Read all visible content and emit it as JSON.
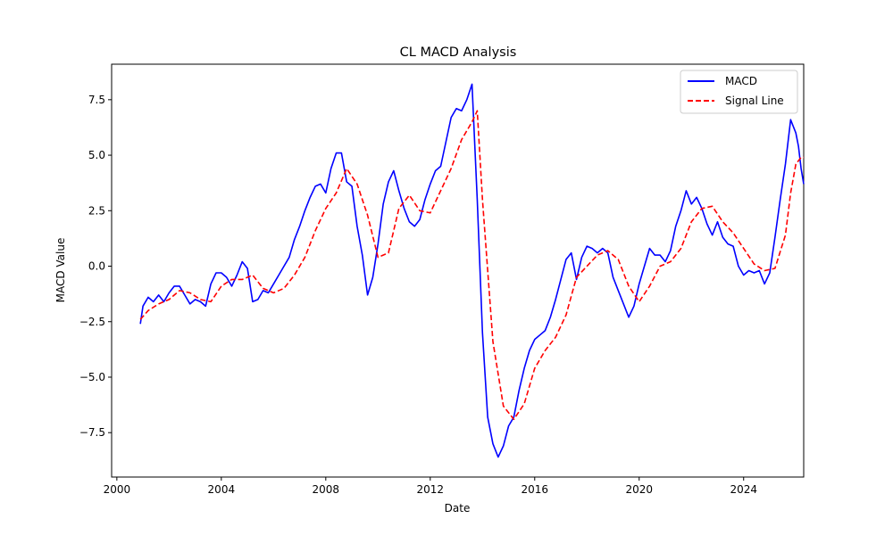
{
  "chart_data": {
    "type": "line",
    "title": "CL MACD Analysis",
    "xlabel": "Date",
    "ylabel": "MACD Value",
    "xlim": [
      1999.8,
      2026.3
    ],
    "ylim": [
      -9.5,
      9.1
    ],
    "x_ticks": [
      {
        "value": 2000,
        "label": "2000"
      },
      {
        "value": 2004,
        "label": "2004"
      },
      {
        "value": 2008,
        "label": "2008"
      },
      {
        "value": 2012,
        "label": "2012"
      },
      {
        "value": 2016,
        "label": "2016"
      },
      {
        "value": 2020,
        "label": "2020"
      },
      {
        "value": 2024,
        "label": "2024"
      }
    ],
    "y_ticks": [
      {
        "value": -7.5,
        "label": "−7.5"
      },
      {
        "value": -5.0,
        "label": "−5.0"
      },
      {
        "value": -2.5,
        "label": "−2.5"
      },
      {
        "value": 0.0,
        "label": "0.0"
      },
      {
        "value": 2.5,
        "label": "2.5"
      },
      {
        "value": 5.0,
        "label": "5.0"
      },
      {
        "value": 7.5,
        "label": "7.5"
      }
    ],
    "grid": false,
    "legend_position": "top-right",
    "series": [
      {
        "name": "MACD",
        "color": "#0000ff",
        "style": "solid",
        "points": [
          [
            2000.9,
            -2.6
          ],
          [
            2001.0,
            -1.8
          ],
          [
            2001.2,
            -1.4
          ],
          [
            2001.4,
            -1.6
          ],
          [
            2001.6,
            -1.3
          ],
          [
            2001.8,
            -1.6
          ],
          [
            2002.0,
            -1.2
          ],
          [
            2002.2,
            -0.9
          ],
          [
            2002.4,
            -0.9
          ],
          [
            2002.6,
            -1.3
          ],
          [
            2002.8,
            -1.7
          ],
          [
            2003.0,
            -1.5
          ],
          [
            2003.2,
            -1.6
          ],
          [
            2003.4,
            -1.8
          ],
          [
            2003.6,
            -0.8
          ],
          [
            2003.8,
            -0.3
          ],
          [
            2004.0,
            -0.3
          ],
          [
            2004.2,
            -0.5
          ],
          [
            2004.4,
            -0.9
          ],
          [
            2004.6,
            -0.4
          ],
          [
            2004.8,
            0.2
          ],
          [
            2005.0,
            -0.1
          ],
          [
            2005.2,
            -1.6
          ],
          [
            2005.4,
            -1.5
          ],
          [
            2005.6,
            -1.1
          ],
          [
            2005.8,
            -1.2
          ],
          [
            2006.0,
            -0.8
          ],
          [
            2006.2,
            -0.4
          ],
          [
            2006.4,
            0.0
          ],
          [
            2006.6,
            0.4
          ],
          [
            2006.8,
            1.2
          ],
          [
            2007.0,
            1.8
          ],
          [
            2007.2,
            2.5
          ],
          [
            2007.4,
            3.1
          ],
          [
            2007.6,
            3.6
          ],
          [
            2007.8,
            3.7
          ],
          [
            2008.0,
            3.3
          ],
          [
            2008.2,
            4.4
          ],
          [
            2008.4,
            5.1
          ],
          [
            2008.6,
            5.1
          ],
          [
            2008.8,
            3.8
          ],
          [
            2009.0,
            3.6
          ],
          [
            2009.2,
            1.8
          ],
          [
            2009.4,
            0.5
          ],
          [
            2009.6,
            -1.3
          ],
          [
            2009.8,
            -0.5
          ],
          [
            2010.0,
            1.0
          ],
          [
            2010.2,
            2.8
          ],
          [
            2010.4,
            3.8
          ],
          [
            2010.6,
            4.3
          ],
          [
            2010.8,
            3.4
          ],
          [
            2011.0,
            2.6
          ],
          [
            2011.2,
            2.0
          ],
          [
            2011.4,
            1.8
          ],
          [
            2011.6,
            2.1
          ],
          [
            2011.8,
            3.0
          ],
          [
            2012.0,
            3.7
          ],
          [
            2012.2,
            4.3
          ],
          [
            2012.4,
            4.5
          ],
          [
            2012.6,
            5.6
          ],
          [
            2012.8,
            6.7
          ],
          [
            2013.0,
            7.1
          ],
          [
            2013.2,
            7.0
          ],
          [
            2013.4,
            7.5
          ],
          [
            2013.6,
            8.2
          ],
          [
            2013.8,
            3.0
          ],
          [
            2014.0,
            -3.0
          ],
          [
            2014.2,
            -6.8
          ],
          [
            2014.4,
            -8.0
          ],
          [
            2014.6,
            -8.6
          ],
          [
            2014.8,
            -8.1
          ],
          [
            2015.0,
            -7.2
          ],
          [
            2015.2,
            -6.8
          ],
          [
            2015.4,
            -5.6
          ],
          [
            2015.6,
            -4.6
          ],
          [
            2015.8,
            -3.8
          ],
          [
            2016.0,
            -3.3
          ],
          [
            2016.2,
            -3.1
          ],
          [
            2016.4,
            -2.9
          ],
          [
            2016.6,
            -2.3
          ],
          [
            2016.8,
            -1.5
          ],
          [
            2017.0,
            -0.6
          ],
          [
            2017.2,
            0.3
          ],
          [
            2017.4,
            0.6
          ],
          [
            2017.6,
            -0.6
          ],
          [
            2017.8,
            0.4
          ],
          [
            2018.0,
            0.9
          ],
          [
            2018.2,
            0.8
          ],
          [
            2018.4,
            0.6
          ],
          [
            2018.6,
            0.8
          ],
          [
            2018.8,
            0.6
          ],
          [
            2019.0,
            -0.5
          ],
          [
            2019.2,
            -1.1
          ],
          [
            2019.4,
            -1.7
          ],
          [
            2019.6,
            -2.3
          ],
          [
            2019.8,
            -1.8
          ],
          [
            2020.0,
            -0.8
          ],
          [
            2020.2,
            0.0
          ],
          [
            2020.4,
            0.8
          ],
          [
            2020.6,
            0.5
          ],
          [
            2020.8,
            0.5
          ],
          [
            2021.0,
            0.2
          ],
          [
            2021.2,
            0.7
          ],
          [
            2021.4,
            1.8
          ],
          [
            2021.6,
            2.5
          ],
          [
            2021.8,
            3.4
          ],
          [
            2022.0,
            2.8
          ],
          [
            2022.2,
            3.1
          ],
          [
            2022.4,
            2.6
          ],
          [
            2022.6,
            1.9
          ],
          [
            2022.8,
            1.4
          ],
          [
            2023.0,
            2.0
          ],
          [
            2023.2,
            1.3
          ],
          [
            2023.4,
            1.0
          ],
          [
            2023.6,
            0.9
          ],
          [
            2023.8,
            0.0
          ],
          [
            2024.0,
            -0.4
          ],
          [
            2024.2,
            -0.2
          ],
          [
            2024.4,
            -0.3
          ],
          [
            2024.6,
            -0.2
          ],
          [
            2024.8,
            -0.8
          ],
          [
            2025.0,
            -0.3
          ],
          [
            2025.2,
            1.3
          ],
          [
            2025.4,
            3.0
          ],
          [
            2025.6,
            4.6
          ],
          [
            2025.8,
            6.6
          ],
          [
            2026.0,
            6.0
          ],
          [
            2026.1,
            5.4
          ],
          [
            2026.2,
            4.4
          ],
          [
            2026.3,
            3.7
          ]
        ]
      },
      {
        "name": "Signal Line",
        "color": "#ff0000",
        "style": "dashed",
        "points": [
          [
            2000.9,
            -2.4
          ],
          [
            2001.2,
            -2.0
          ],
          [
            2001.6,
            -1.7
          ],
          [
            2002.0,
            -1.5
          ],
          [
            2002.4,
            -1.1
          ],
          [
            2002.8,
            -1.2
          ],
          [
            2003.2,
            -1.5
          ],
          [
            2003.6,
            -1.6
          ],
          [
            2004.0,
            -0.9
          ],
          [
            2004.4,
            -0.6
          ],
          [
            2004.8,
            -0.6
          ],
          [
            2005.2,
            -0.4
          ],
          [
            2005.6,
            -1.0
          ],
          [
            2006.0,
            -1.2
          ],
          [
            2006.4,
            -1.0
          ],
          [
            2006.8,
            -0.4
          ],
          [
            2007.2,
            0.4
          ],
          [
            2007.6,
            1.6
          ],
          [
            2008.0,
            2.6
          ],
          [
            2008.4,
            3.3
          ],
          [
            2008.8,
            4.4
          ],
          [
            2009.2,
            3.7
          ],
          [
            2009.6,
            2.3
          ],
          [
            2010.0,
            0.4
          ],
          [
            2010.4,
            0.6
          ],
          [
            2010.8,
            2.6
          ],
          [
            2011.2,
            3.2
          ],
          [
            2011.6,
            2.5
          ],
          [
            2012.0,
            2.4
          ],
          [
            2012.4,
            3.4
          ],
          [
            2012.8,
            4.4
          ],
          [
            2013.2,
            5.7
          ],
          [
            2013.6,
            6.5
          ],
          [
            2013.8,
            7.0
          ],
          [
            2014.0,
            3.0
          ],
          [
            2014.4,
            -3.4
          ],
          [
            2014.8,
            -6.3
          ],
          [
            2015.2,
            -6.9
          ],
          [
            2015.6,
            -6.2
          ],
          [
            2016.0,
            -4.6
          ],
          [
            2016.4,
            -3.8
          ],
          [
            2016.8,
            -3.2
          ],
          [
            2017.2,
            -2.2
          ],
          [
            2017.6,
            -0.5
          ],
          [
            2018.0,
            0.0
          ],
          [
            2018.4,
            0.5
          ],
          [
            2018.8,
            0.7
          ],
          [
            2019.2,
            0.3
          ],
          [
            2019.6,
            -0.9
          ],
          [
            2020.0,
            -1.6
          ],
          [
            2020.4,
            -0.9
          ],
          [
            2020.8,
            0.0
          ],
          [
            2021.2,
            0.2
          ],
          [
            2021.6,
            0.8
          ],
          [
            2022.0,
            2.0
          ],
          [
            2022.4,
            2.6
          ],
          [
            2022.8,
            2.7
          ],
          [
            2023.2,
            2.0
          ],
          [
            2023.6,
            1.5
          ],
          [
            2024.0,
            0.8
          ],
          [
            2024.4,
            0.1
          ],
          [
            2024.8,
            -0.2
          ],
          [
            2025.2,
            -0.1
          ],
          [
            2025.6,
            1.4
          ],
          [
            2025.8,
            3.3
          ],
          [
            2026.0,
            4.6
          ],
          [
            2026.2,
            4.9
          ],
          [
            2026.3,
            4.9
          ]
        ]
      }
    ]
  }
}
